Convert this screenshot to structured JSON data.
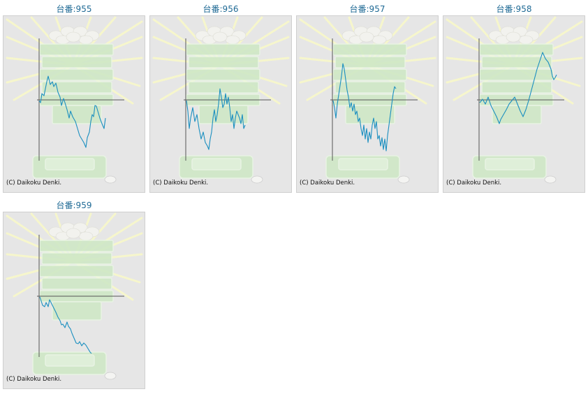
{
  "copyright": "(C) Daikoku Denki.",
  "colors": {
    "title": "#1f6a95",
    "line": "#1b8fc0",
    "axis": "#555555",
    "background": "#e6e6e6"
  },
  "icons": {
    "background": "coin-tower-illustration"
  },
  "units": [
    {
      "title": "台番:955"
    },
    {
      "title": "台番:956"
    },
    {
      "title": "台番:957"
    },
    {
      "title": "台番:958"
    },
    {
      "title": "台番:959"
    }
  ],
  "chart_data": [
    {
      "type": "line",
      "title": "台番:955",
      "grid": false,
      "x": [
        0,
        2,
        4,
        7,
        11,
        13,
        16,
        19,
        21,
        24,
        27,
        30,
        32,
        35,
        37,
        40,
        43,
        45,
        48,
        52,
        55,
        58,
        61,
        64,
        67,
        69,
        72,
        74,
        76,
        78,
        80,
        82,
        84,
        87,
        90,
        93,
        95
      ],
      "y": [
        -1,
        -4,
        9,
        6,
        26,
        34,
        22,
        26,
        19,
        24,
        11,
        4,
        -8,
        2,
        -4,
        -14,
        -26,
        -16,
        -24,
        -31,
        -41,
        -51,
        -56,
        -61,
        -68,
        -54,
        -46,
        -31,
        -21,
        -24,
        -8,
        -9,
        -16,
        -26,
        -34,
        -41,
        -26
      ]
    },
    {
      "type": "line",
      "title": "台番:956",
      "grid": false,
      "x": [
        1,
        3,
        5,
        7,
        10,
        13,
        16,
        19,
        22,
        25,
        28,
        31,
        33,
        35,
        37,
        39,
        41,
        43,
        45,
        47,
        49,
        51,
        53,
        55,
        57,
        59,
        61,
        63,
        65,
        67,
        69,
        71,
        73,
        75,
        77,
        79,
        81,
        83,
        85
      ],
      "y": [
        -1,
        -16,
        -41,
        -26,
        -11,
        -31,
        -21,
        -41,
        -56,
        -46,
        -61,
        -66,
        -71,
        -56,
        -46,
        -26,
        -14,
        -31,
        -21,
        -6,
        16,
        4,
        -11,
        -6,
        9,
        -6,
        4,
        -11,
        -31,
        -21,
        -41,
        -26,
        -16,
        -21,
        -26,
        -34,
        -21,
        -41,
        -36
      ]
    },
    {
      "type": "line",
      "title": "台番:957",
      "grid": false,
      "x": [
        1,
        3,
        5,
        7,
        10,
        13,
        15,
        17,
        19,
        21,
        23,
        25,
        27,
        29,
        31,
        33,
        35,
        37,
        39,
        41,
        43,
        45,
        47,
        49,
        51,
        53,
        55,
        57,
        59,
        61,
        63,
        65,
        67,
        69,
        71,
        73,
        75,
        77,
        79,
        81,
        83,
        85,
        87,
        89,
        91
      ],
      "y": [
        -1,
        -11,
        -26,
        -6,
        14,
        34,
        52,
        44,
        29,
        14,
        4,
        -11,
        -4,
        -16,
        -6,
        -21,
        -16,
        -31,
        -26,
        -41,
        -51,
        -36,
        -56,
        -41,
        -61,
        -46,
        -56,
        -36,
        -26,
        -41,
        -31,
        -56,
        -51,
        -66,
        -54,
        -71,
        -56,
        -73,
        -51,
        -36,
        -21,
        -6,
        9,
        19,
        16
      ]
    },
    {
      "type": "line",
      "title": "台番:958",
      "grid": false,
      "x": [
        1,
        5,
        9,
        13,
        17,
        21,
        25,
        29,
        31,
        35,
        39,
        43,
        47,
        51,
        55,
        59,
        63,
        67,
        71,
        75,
        79,
        83,
        87,
        91,
        95,
        99,
        103,
        105,
        107,
        109,
        111
      ],
      "y": [
        -4,
        1,
        -6,
        4,
        -8,
        -16,
        -24,
        -34,
        -28,
        -21,
        -14,
        -6,
        -1,
        4,
        -6,
        -16,
        -24,
        -14,
        -1,
        14,
        29,
        44,
        56,
        68,
        59,
        54,
        44,
        34,
        29,
        32,
        36
      ]
    },
    {
      "type": "line",
      "title": "台番:959",
      "grid": false,
      "x": [
        1,
        3,
        5,
        8,
        10,
        13,
        15,
        18,
        21,
        24,
        27,
        30,
        32,
        34,
        37,
        40,
        42,
        45,
        47,
        50,
        53,
        56,
        58,
        61,
        64,
        67,
        70,
        73,
        75
      ],
      "y": [
        -1,
        -7,
        -13,
        -15,
        -9,
        -15,
        -5,
        -11,
        -17,
        -23,
        -30,
        -35,
        -41,
        -40,
        -45,
        -37,
        -43,
        -47,
        -53,
        -60,
        -67,
        -68,
        -65,
        -71,
        -67,
        -70,
        -75,
        -80,
        -82
      ]
    }
  ]
}
